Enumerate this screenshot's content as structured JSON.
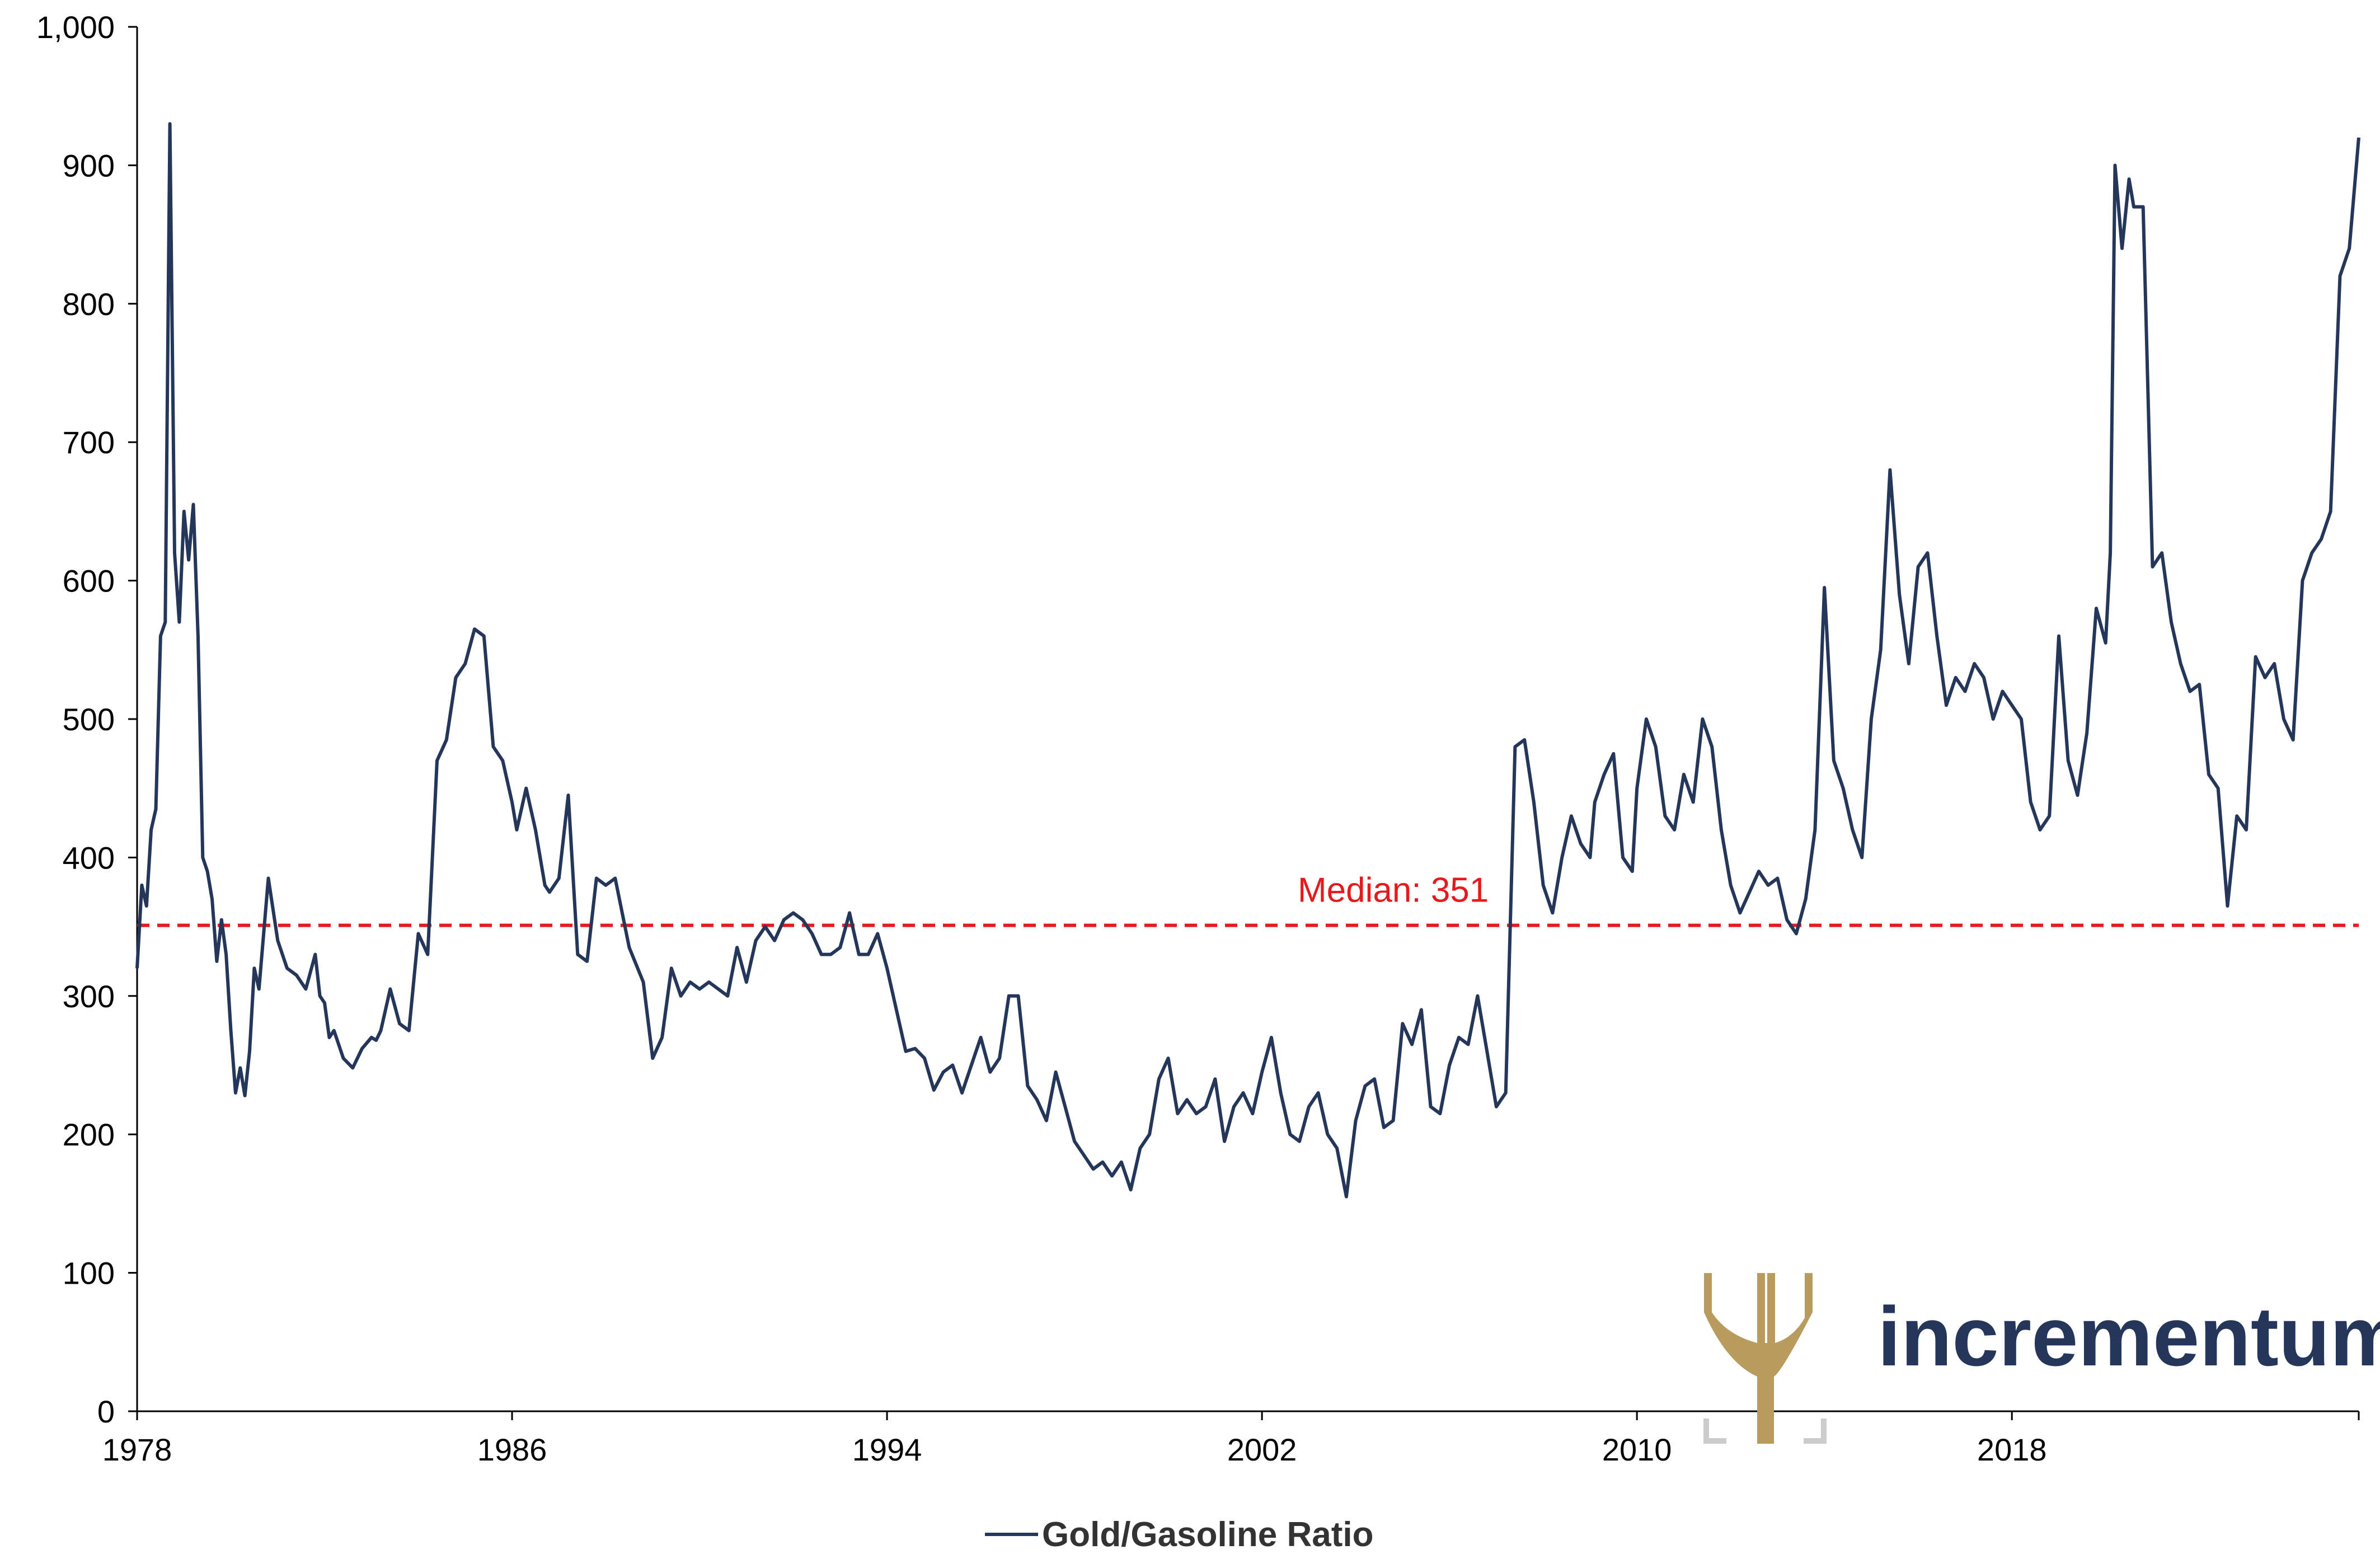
{
  "colors": {
    "series": "#243659",
    "median": "#e41a1c",
    "axis": "#000000",
    "logo_gold": "#b89b5e",
    "logo_text": "#243659",
    "logo_bracket": "#cccccc"
  },
  "logo": {
    "text": "incrementum",
    "icon": "tree-icon"
  },
  "chart_data": {
    "type": "line",
    "title": "",
    "xlabel": "",
    "ylabel": "",
    "xlim": [
      1978,
      2025.4
    ],
    "ylim": [
      0,
      1000
    ],
    "grid": false,
    "legend_position": "bottom-center",
    "x_ticks": [
      "1978",
      "1986",
      "1994",
      "2002",
      "2010",
      "2018"
    ],
    "y_ticks": [
      "0",
      "100",
      "200",
      "300",
      "400",
      "500",
      "600",
      "700",
      "800",
      "900",
      "1,000"
    ],
    "median": {
      "value": 351,
      "label": "Median: 351"
    },
    "series": [
      {
        "name": "Gold/Gasoline Ratio",
        "x": [
          1978.0,
          1978.1,
          1978.2,
          1978.3,
          1978.4,
          1978.5,
          1978.6,
          1978.7,
          1978.8,
          1978.9,
          1979.0,
          1979.1,
          1979.2,
          1979.3,
          1979.4,
          1979.5,
          1979.6,
          1979.7,
          1979.8,
          1979.9,
          1980.0,
          1980.1,
          1980.2,
          1980.3,
          1980.4,
          1980.5,
          1980.6,
          1980.8,
          1981.0,
          1981.2,
          1981.4,
          1981.6,
          1981.8,
          1981.9,
          1982.0,
          1982.1,
          1982.2,
          1982.4,
          1982.6,
          1982.8,
          1983.0,
          1983.1,
          1983.2,
          1983.4,
          1983.6,
          1983.8,
          1984.0,
          1984.2,
          1984.4,
          1984.6,
          1984.8,
          1985.0,
          1985.2,
          1985.4,
          1985.6,
          1985.8,
          1986.0,
          1986.1,
          1986.3,
          1986.5,
          1986.7,
          1986.8,
          1987.0,
          1987.2,
          1987.4,
          1987.6,
          1987.8,
          1988.0,
          1988.2,
          1988.5,
          1988.8,
          1989.0,
          1989.2,
          1989.4,
          1989.6,
          1989.8,
          1990.0,
          1990.2,
          1990.4,
          1990.6,
          1990.8,
          1991.0,
          1991.2,
          1991.4,
          1991.6,
          1991.8,
          1992.0,
          1992.2,
          1992.4,
          1992.6,
          1992.8,
          1993.0,
          1993.2,
          1993.4,
          1993.6,
          1993.8,
          1994.0,
          1994.2,
          1994.4,
          1994.6,
          1994.8,
          1995.0,
          1995.2,
          1995.4,
          1995.6,
          1995.8,
          1996.0,
          1996.2,
          1996.4,
          1996.6,
          1996.8,
          1997.0,
          1997.2,
          1997.4,
          1997.6,
          1997.8,
          1998.0,
          1998.2,
          1998.4,
          1998.6,
          1998.8,
          1999.0,
          1999.2,
          1999.4,
          1999.6,
          1999.8,
          2000.0,
          2000.2,
          2000.4,
          2000.6,
          2000.8,
          2001.0,
          2001.2,
          2001.4,
          2001.6,
          2001.8,
          2002.0,
          2002.2,
          2002.4,
          2002.6,
          2002.8,
          2003.0,
          2003.2,
          2003.4,
          2003.6,
          2003.8,
          2004.0,
          2004.2,
          2004.4,
          2004.6,
          2004.8,
          2005.0,
          2005.2,
          2005.4,
          2005.6,
          2005.8,
          2006.0,
          2006.2,
          2006.4,
          2006.6,
          2006.8,
          2007.0,
          2007.2,
          2007.4,
          2007.6,
          2007.8,
          2008.0,
          2008.2,
          2008.4,
          2008.6,
          2008.8,
          2009.0,
          2009.1,
          2009.3,
          2009.5,
          2009.7,
          2009.9,
          2010.0,
          2010.2,
          2010.4,
          2010.6,
          2010.8,
          2011.0,
          2011.2,
          2011.4,
          2011.6,
          2011.8,
          2012.0,
          2012.2,
          2012.4,
          2012.6,
          2012.8,
          2013.0,
          2013.2,
          2013.4,
          2013.6,
          2013.8,
          2014.0,
          2014.2,
          2014.4,
          2014.6,
          2014.8,
          2015.0,
          2015.2,
          2015.4,
          2015.6,
          2015.8,
          2016.0,
          2016.2,
          2016.4,
          2016.6,
          2016.8,
          2017.0,
          2017.2,
          2017.4,
          2017.6,
          2017.8,
          2018.0,
          2018.2,
          2018.4,
          2018.6,
          2018.8,
          2019.0,
          2019.2,
          2019.4,
          2019.6,
          2019.8,
          2020.0,
          2020.1,
          2020.2,
          2020.35,
          2020.5,
          2020.6,
          2020.8,
          2021.0,
          2021.2,
          2021.4,
          2021.6,
          2021.8,
          2022.0,
          2022.2,
          2022.4,
          2022.6,
          2022.8,
          2023.0,
          2023.2,
          2023.4,
          2023.6,
          2023.8,
          2024.0,
          2024.2,
          2024.4,
          2024.6,
          2024.8,
          2025.0,
          2025.2,
          2025.4
        ],
        "values": [
          320,
          380,
          365,
          420,
          435,
          560,
          570,
          930,
          620,
          570,
          650,
          615,
          655,
          560,
          400,
          390,
          370,
          325,
          355,
          330,
          275,
          230,
          248,
          228,
          260,
          320,
          305,
          385,
          340,
          320,
          315,
          305,
          330,
          300,
          295,
          270,
          275,
          255,
          248,
          262,
          270,
          268,
          275,
          305,
          280,
          275,
          345,
          330,
          470,
          485,
          530,
          540,
          565,
          560,
          480,
          470,
          440,
          420,
          450,
          420,
          380,
          375,
          385,
          445,
          330,
          325,
          385,
          380,
          385,
          335,
          310,
          255,
          270,
          320,
          300,
          310,
          305,
          310,
          305,
          300,
          335,
          310,
          340,
          350,
          340,
          355,
          360,
          355,
          345,
          330,
          330,
          335,
          360,
          330,
          330,
          345,
          320,
          290,
          260,
          262,
          255,
          232,
          245,
          250,
          230,
          250,
          270,
          245,
          255,
          300,
          300,
          235,
          225,
          210,
          245,
          220,
          195,
          185,
          175,
          180,
          170,
          180,
          160,
          190,
          200,
          240,
          255,
          215,
          225,
          215,
          220,
          240,
          195,
          220,
          230,
          215,
          245,
          270,
          230,
          200,
          195,
          220,
          230,
          200,
          190,
          155,
          210,
          235,
          240,
          205,
          210,
          280,
          265,
          290,
          220,
          215,
          250,
          270,
          265,
          300,
          260,
          220,
          230,
          480,
          485,
          440,
          380,
          360,
          400,
          430,
          410,
          400,
          440,
          460,
          475,
          400,
          390,
          450,
          500,
          480,
          430,
          420,
          460,
          440,
          500,
          480,
          420,
          380,
          360,
          375,
          390,
          380,
          385,
          355,
          345,
          370,
          420,
          595,
          470,
          450,
          420,
          400,
          500,
          550,
          680,
          590,
          540,
          610,
          620,
          560,
          510,
          530,
          520,
          540,
          530,
          500,
          520,
          510,
          500,
          440,
          420,
          430,
          560,
          470,
          445,
          490,
          580,
          555,
          620,
          900,
          840,
          890,
          870,
          870,
          610,
          620,
          570,
          540,
          520,
          525,
          460,
          450,
          365,
          430,
          420,
          545,
          530,
          540,
          500,
          485,
          600,
          620,
          630,
          650,
          820,
          840,
          920
        ]
      }
    ]
  }
}
